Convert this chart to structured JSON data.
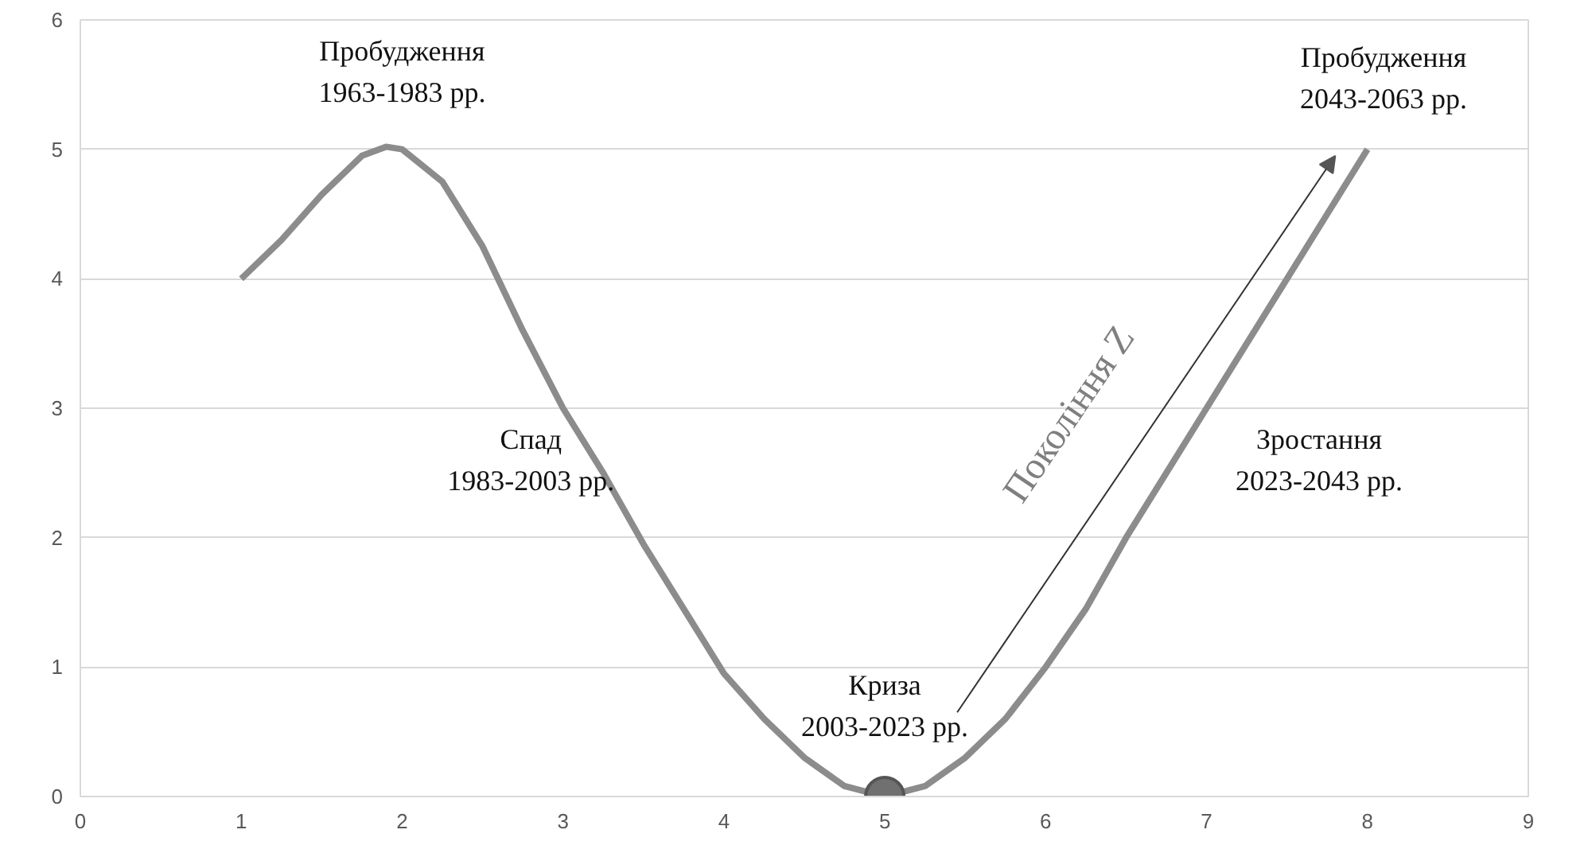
{
  "chart_data": {
    "type": "line",
    "x": [
      1,
      1.25,
      1.5,
      1.75,
      1.9,
      2,
      2.25,
      2.5,
      2.75,
      3,
      3.25,
      3.5,
      3.75,
      4,
      4.25,
      4.5,
      4.75,
      5,
      5.25,
      5.5,
      5.75,
      6,
      6.25,
      6.5,
      6.75,
      7,
      7.25,
      7.5,
      7.75,
      8
    ],
    "series": [
      {
        "color": "#8c8c8c",
        "values": [
          4,
          4.3,
          4.65,
          4.95,
          5.02,
          5,
          4.75,
          4.25,
          3.6,
          3,
          2.5,
          1.95,
          1.45,
          0.95,
          0.6,
          0.3,
          0.08,
          0,
          0.08,
          0.3,
          0.6,
          1,
          1.45,
          2,
          2.5,
          3,
          3.5,
          4,
          4.5,
          5
        ]
      },
      {
        "type": "scatter",
        "color": "#707070",
        "x": [
          5
        ],
        "values": [
          0
        ],
        "marker": "circle"
      }
    ],
    "xlim": [
      0,
      9
    ],
    "ylim": [
      0,
      6
    ],
    "xticks": [
      0,
      1,
      2,
      3,
      4,
      5,
      6,
      7,
      8,
      9
    ],
    "yticks": [
      0,
      1,
      2,
      3,
      4,
      5,
      6
    ],
    "grid": "y",
    "annotations": [
      "Пробудження\n1963-1983 рр.",
      "Спад\n1983-2003 рр.",
      "Криза\n2003-2023 рр.",
      "Зростання\n2023-2043 рр.",
      "Пробудження\n2043-2063 рр.",
      "Покоління Z"
    ]
  }
}
